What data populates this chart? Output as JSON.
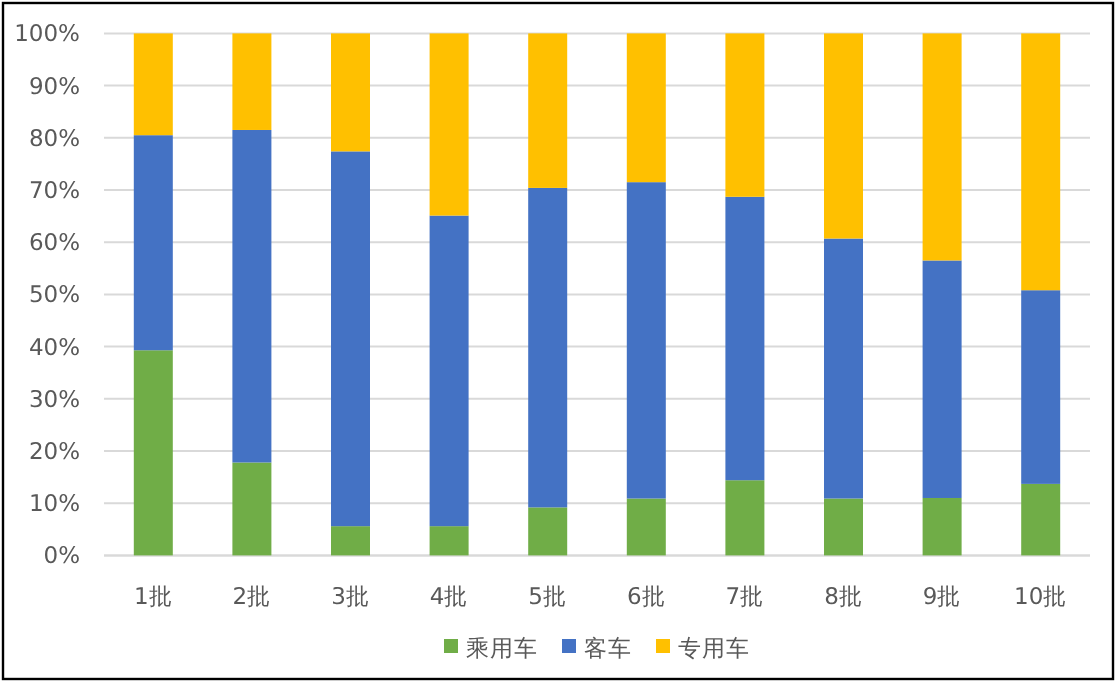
{
  "chart_data": {
    "type": "bar",
    "stacked": true,
    "grid": "y",
    "legend": "bottom",
    "categories": [
      "1批",
      "2批",
      "3批",
      "4批",
      "5批",
      "6批",
      "7批",
      "8批",
      "9批",
      "10批"
    ],
    "series": [
      {
        "name": "乘用车",
        "color": "#70ad47",
        "values": [
          39.3,
          17.8,
          5.6,
          5.6,
          9.2,
          10.9,
          14.4,
          10.9,
          11.0,
          13.7
        ]
      },
      {
        "name": "客车",
        "color": "#4472c4",
        "values": [
          41.2,
          63.7,
          71.8,
          59.5,
          61.2,
          60.6,
          54.3,
          49.8,
          45.5,
          37.1
        ]
      },
      {
        "name": "专用车",
        "color": "#ffc000",
        "values": [
          19.5,
          18.5,
          22.6,
          34.9,
          29.6,
          28.5,
          31.3,
          39.3,
          43.5,
          49.2
        ]
      }
    ],
    "ylim": [
      0,
      100
    ],
    "yticks": [
      {
        "value": 0,
        "label": "0%"
      },
      {
        "value": 10,
        "label": "10%"
      },
      {
        "value": 20,
        "label": "20%"
      },
      {
        "value": 30,
        "label": "30%"
      },
      {
        "value": 40,
        "label": "40%"
      },
      {
        "value": 50,
        "label": "50%"
      },
      {
        "value": 60,
        "label": "60%"
      },
      {
        "value": 70,
        "label": "70%"
      },
      {
        "value": 80,
        "label": "80%"
      },
      {
        "value": 90,
        "label": "90%"
      },
      {
        "value": 100,
        "label": "100%"
      }
    ]
  }
}
